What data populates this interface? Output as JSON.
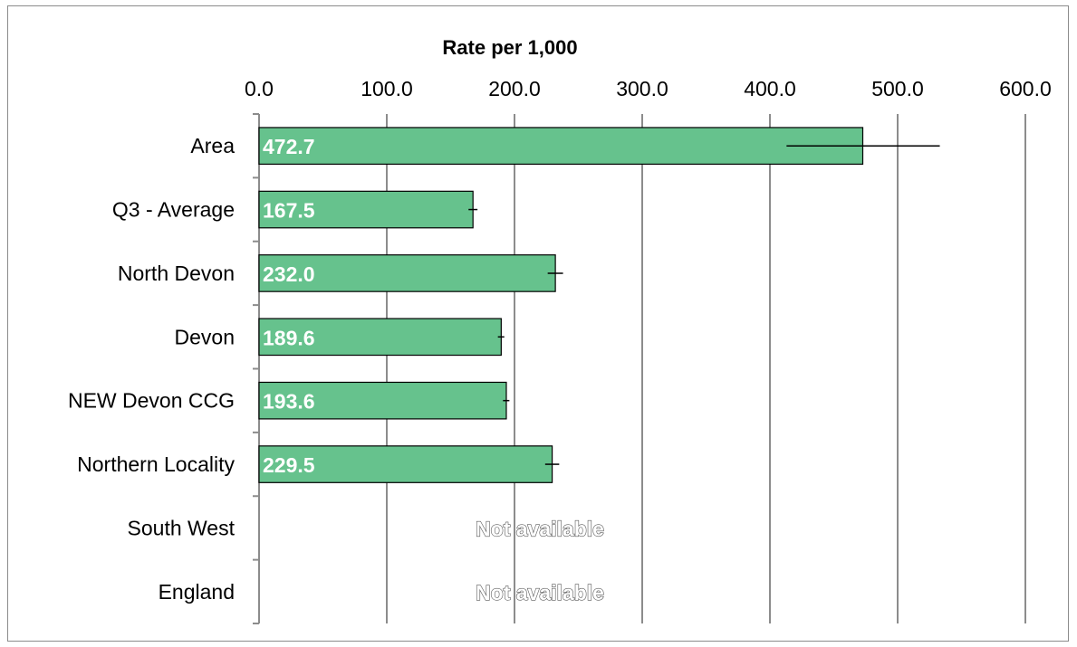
{
  "chart_data": {
    "type": "bar",
    "orientation": "horizontal",
    "xlabel": "Rate per 1,000",
    "xlim": [
      0,
      600
    ],
    "ticks": [
      "0.0",
      "100.0",
      "200.0",
      "300.0",
      "400.0",
      "500.0",
      "600.0"
    ],
    "tick_values": [
      0,
      100,
      200,
      300,
      400,
      500,
      600
    ],
    "grid": true,
    "axis_position": "top",
    "categories": [
      "Area",
      "Q3 - Average",
      "North Devon",
      "Devon",
      "NEW Devon CCG",
      "Northern Locality",
      "South West",
      "England"
    ],
    "values": [
      472.7,
      167.5,
      232.0,
      189.6,
      193.6,
      229.5,
      null,
      null
    ],
    "value_labels": [
      "472.7",
      "167.5",
      "232.0",
      "189.6",
      "193.6",
      "229.5",
      "Not available",
      "Not available"
    ],
    "error_low": [
      413,
      164,
      226,
      187,
      191,
      224,
      null,
      null
    ],
    "error_high": [
      533,
      171,
      238,
      192,
      196,
      235,
      null,
      null
    ],
    "bar_color": "#66c28d",
    "bar_edge_color": "#000000",
    "grid_color": "#8c8c8c"
  }
}
